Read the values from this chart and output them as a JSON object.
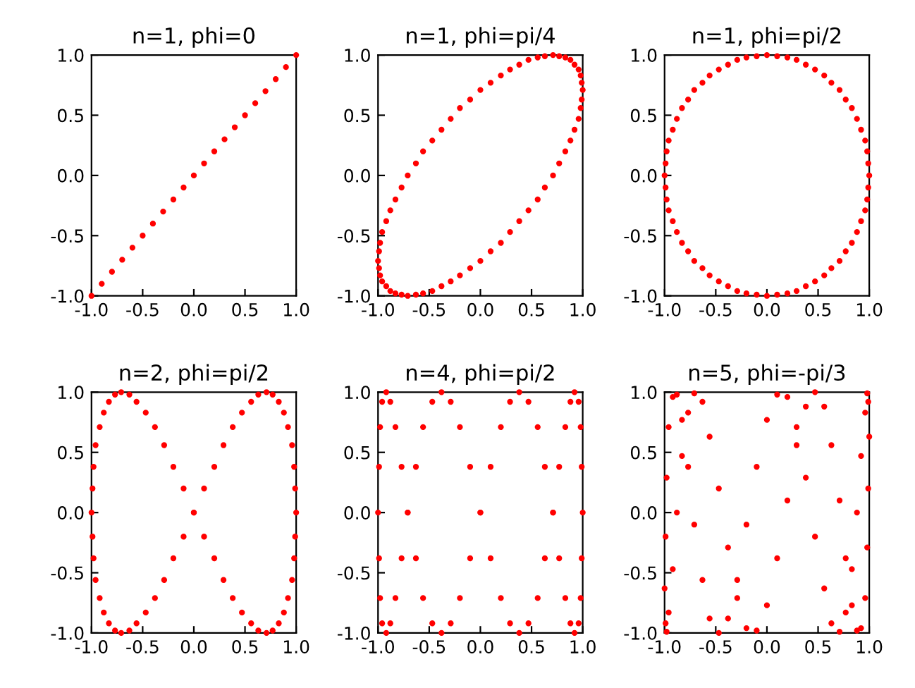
{
  "chart_data": [
    {
      "type": "scatter",
      "title": "n=1, phi=0",
      "color": "#ff0000",
      "marker": "circle",
      "xlim": [
        -1,
        1
      ],
      "ylim": [
        -1,
        1
      ],
      "xticks": [
        {
          "value": -1,
          "label": "-1.0"
        },
        {
          "value": -0.5,
          "label": "-0.5"
        },
        {
          "value": 0,
          "label": "0.0"
        },
        {
          "value": 0.5,
          "label": "0.5"
        },
        {
          "value": 1,
          "label": "1.0"
        }
      ],
      "yticks": [
        {
          "value": -1,
          "label": "-1.0"
        },
        {
          "value": -0.5,
          "label": "-0.5"
        },
        {
          "value": 0,
          "label": "0.0"
        },
        {
          "value": 0.5,
          "label": "0.5"
        },
        {
          "value": 1,
          "label": "1.0"
        }
      ],
      "x": [
        -1,
        -0.9,
        -0.8,
        -0.7,
        -0.6,
        -0.5,
        -0.4,
        -0.3,
        -0.2,
        -0.1,
        0,
        0.1,
        0.2,
        0.3,
        0.4,
        0.5,
        0.6,
        0.7,
        0.8,
        0.9,
        1
      ],
      "values": [
        -1,
        -0.9,
        -0.8,
        -0.7,
        -0.6,
        -0.5,
        -0.4,
        -0.3,
        -0.2,
        -0.1,
        0,
        0.1,
        0.2,
        0.3,
        0.4,
        0.5,
        0.6,
        0.7,
        0.8,
        0.9,
        1
      ]
    },
    {
      "type": "scatter",
      "title": "n=1, phi=pi/4",
      "color": "#ff0000",
      "marker": "circle",
      "xlim": [
        -1,
        1
      ],
      "ylim": [
        -1,
        1
      ],
      "xticks": [
        {
          "value": -1,
          "label": "-1.0"
        },
        {
          "value": -0.5,
          "label": "-0.5"
        },
        {
          "value": 0,
          "label": "0.0"
        },
        {
          "value": 0.5,
          "label": "0.5"
        },
        {
          "value": 1,
          "label": "1.0"
        }
      ],
      "yticks": [
        {
          "value": -1,
          "label": "-1.0"
        },
        {
          "value": -0.5,
          "label": "-0.5"
        },
        {
          "value": 0,
          "label": "0.0"
        },
        {
          "value": 0.5,
          "label": "0.5"
        },
        {
          "value": 1,
          "label": "1.0"
        }
      ],
      "x": [
        0.71,
        0.77,
        0.83,
        0.88,
        0.92,
        0.96,
        0.98,
        0.99,
        1,
        0.99,
        0.98,
        0.96,
        0.92,
        0.88,
        0.83,
        0.77,
        0.71,
        0.63,
        0.56,
        0.47,
        0.38,
        0.29,
        0.2,
        0.1,
        0,
        -0.1,
        -0.2,
        -0.29,
        -0.38,
        -0.47,
        -0.56,
        -0.63,
        -0.71,
        -0.77,
        -0.83,
        -0.88,
        -0.92,
        -0.96,
        -0.98,
        -0.99,
        -1,
        -0.99,
        -0.98,
        -0.96,
        -0.92,
        -0.88,
        -0.83,
        -0.77,
        -0.71,
        -0.63,
        -0.56,
        -0.47,
        -0.38,
        -0.29,
        -0.2,
        -0.1,
        0,
        0.1,
        0.2,
        0.29,
        0.38,
        0.47,
        0.56,
        0.63
      ],
      "values": [
        0,
        0.1,
        0.2,
        0.29,
        0.38,
        0.47,
        0.56,
        0.63,
        0.71,
        0.77,
        0.83,
        0.88,
        0.92,
        0.96,
        0.98,
        0.99,
        1,
        0.99,
        0.98,
        0.96,
        0.92,
        0.88,
        0.83,
        0.77,
        0.71,
        0.63,
        0.56,
        0.47,
        0.38,
        0.29,
        0.2,
        0.1,
        0,
        -0.1,
        -0.2,
        -0.29,
        -0.38,
        -0.47,
        -0.56,
        -0.63,
        -0.71,
        -0.77,
        -0.83,
        -0.88,
        -0.92,
        -0.96,
        -0.98,
        -0.99,
        -1,
        -0.99,
        -0.98,
        -0.96,
        -0.92,
        -0.88,
        -0.83,
        -0.77,
        -0.71,
        -0.63,
        -0.56,
        -0.47,
        -0.38,
        -0.29,
        -0.2,
        -0.1
      ]
    },
    {
      "type": "scatter",
      "title": "n=1, phi=pi/2",
      "color": "#ff0000",
      "marker": "circle",
      "xlim": [
        -1,
        1
      ],
      "ylim": [
        -1,
        1
      ],
      "xticks": [
        {
          "value": -1,
          "label": "-1.0"
        },
        {
          "value": -0.5,
          "label": "-0.5"
        },
        {
          "value": 0,
          "label": "0.0"
        },
        {
          "value": 0.5,
          "label": "0.5"
        },
        {
          "value": 1,
          "label": "1.0"
        }
      ],
      "yticks": [
        {
          "value": -1,
          "label": "-1.0"
        },
        {
          "value": -0.5,
          "label": "-0.5"
        },
        {
          "value": 0,
          "label": "0.0"
        },
        {
          "value": 0.5,
          "label": "0.5"
        },
        {
          "value": 1,
          "label": "1.0"
        }
      ],
      "x": [
        1,
        0.99,
        0.98,
        0.96,
        0.92,
        0.88,
        0.83,
        0.77,
        0.71,
        0.63,
        0.56,
        0.47,
        0.38,
        0.29,
        0.2,
        0.1,
        0,
        -0.1,
        -0.2,
        -0.29,
        -0.38,
        -0.47,
        -0.56,
        -0.63,
        -0.71,
        -0.77,
        -0.83,
        -0.88,
        -0.92,
        -0.96,
        -0.98,
        -0.99,
        -1,
        -0.99,
        -0.98,
        -0.96,
        -0.92,
        -0.88,
        -0.83,
        -0.77,
        -0.71,
        -0.63,
        -0.56,
        -0.47,
        -0.38,
        -0.29,
        -0.2,
        -0.1,
        0,
        0.1,
        0.2,
        0.29,
        0.38,
        0.47,
        0.56,
        0.63,
        0.71,
        0.77,
        0.83,
        0.88,
        0.92,
        0.96,
        0.98,
        0.99
      ],
      "values": [
        0,
        0.1,
        0.2,
        0.29,
        0.38,
        0.47,
        0.56,
        0.63,
        0.71,
        0.77,
        0.83,
        0.88,
        0.92,
        0.96,
        0.98,
        0.99,
        1,
        0.99,
        0.98,
        0.96,
        0.92,
        0.88,
        0.83,
        0.77,
        0.71,
        0.63,
        0.56,
        0.47,
        0.38,
        0.29,
        0.2,
        0.1,
        0,
        -0.1,
        -0.2,
        -0.29,
        -0.38,
        -0.47,
        -0.56,
        -0.63,
        -0.71,
        -0.77,
        -0.83,
        -0.88,
        -0.92,
        -0.96,
        -0.98,
        -0.99,
        -1,
        -0.99,
        -0.98,
        -0.96,
        -0.92,
        -0.88,
        -0.83,
        -0.77,
        -0.71,
        -0.63,
        -0.56,
        -0.47,
        -0.38,
        -0.29,
        -0.2,
        -0.1
      ]
    },
    {
      "type": "scatter",
      "title": "n=2, phi=pi/2",
      "color": "#ff0000",
      "marker": "circle",
      "xlim": [
        -1,
        1
      ],
      "ylim": [
        -1,
        1
      ],
      "xticks": [
        {
          "value": -1,
          "label": "-1.0"
        },
        {
          "value": -0.5,
          "label": "-0.5"
        },
        {
          "value": 0,
          "label": "0.0"
        },
        {
          "value": 0.5,
          "label": "0.5"
        },
        {
          "value": 1,
          "label": "1.0"
        }
      ],
      "yticks": [
        {
          "value": -1,
          "label": "-1.0"
        },
        {
          "value": -0.5,
          "label": "-0.5"
        },
        {
          "value": 0,
          "label": "0.0"
        },
        {
          "value": 0.5,
          "label": "0.5"
        },
        {
          "value": 1,
          "label": "1.0"
        }
      ],
      "x": [
        1,
        0.99,
        0.98,
        0.96,
        0.92,
        0.88,
        0.83,
        0.77,
        0.71,
        0.63,
        0.56,
        0.47,
        0.38,
        0.29,
        0.2,
        0.1,
        0,
        -0.1,
        -0.2,
        -0.29,
        -0.38,
        -0.47,
        -0.56,
        -0.63,
        -0.71,
        -0.77,
        -0.83,
        -0.88,
        -0.92,
        -0.96,
        -0.98,
        -0.99,
        -1,
        -0.99,
        -0.98,
        -0.96,
        -0.92,
        -0.88,
        -0.83,
        -0.77,
        -0.71,
        -0.63,
        -0.56,
        -0.47,
        -0.38,
        -0.29,
        -0.2,
        -0.1,
        0,
        0.1,
        0.2,
        0.29,
        0.38,
        0.47,
        0.56,
        0.63,
        0.71,
        0.77,
        0.83,
        0.88,
        0.92,
        0.96,
        0.98,
        0.99
      ],
      "values": [
        0,
        0.2,
        0.38,
        0.56,
        0.71,
        0.83,
        0.92,
        0.98,
        1,
        0.98,
        0.92,
        0.83,
        0.71,
        0.56,
        0.38,
        0.2,
        0,
        -0.2,
        -0.38,
        -0.56,
        -0.71,
        -0.83,
        -0.92,
        -0.98,
        -1,
        -0.98,
        -0.92,
        -0.83,
        -0.71,
        -0.56,
        -0.38,
        -0.2,
        0,
        0.2,
        0.38,
        0.56,
        0.71,
        0.83,
        0.92,
        0.98,
        1,
        0.98,
        0.92,
        0.83,
        0.71,
        0.56,
        0.38,
        0.2,
        0,
        -0.2,
        -0.38,
        -0.56,
        -0.71,
        -0.83,
        -0.92,
        -0.98,
        -1,
        -0.98,
        -0.92,
        -0.83,
        -0.71,
        -0.56,
        -0.38,
        -0.2
      ]
    },
    {
      "type": "scatter",
      "title": "n=4, phi=pi/2",
      "color": "#ff0000",
      "marker": "circle",
      "xlim": [
        -1,
        1
      ],
      "ylim": [
        -1,
        1
      ],
      "xticks": [
        {
          "value": -1,
          "label": "-1.0"
        },
        {
          "value": -0.5,
          "label": "-0.5"
        },
        {
          "value": 0,
          "label": "0.0"
        },
        {
          "value": 0.5,
          "label": "0.5"
        },
        {
          "value": 1,
          "label": "1.0"
        }
      ],
      "yticks": [
        {
          "value": -1,
          "label": "-1.0"
        },
        {
          "value": -0.5,
          "label": "-0.5"
        },
        {
          "value": 0,
          "label": "0.0"
        },
        {
          "value": 0.5,
          "label": "0.5"
        },
        {
          "value": 1,
          "label": "1.0"
        }
      ],
      "x": [
        1,
        0.99,
        0.98,
        0.96,
        0.92,
        0.88,
        0.83,
        0.77,
        0.71,
        0.63,
        0.56,
        0.47,
        0.38,
        0.29,
        0.2,
        0.1,
        0,
        -0.1,
        -0.2,
        -0.29,
        -0.38,
        -0.47,
        -0.56,
        -0.63,
        -0.71,
        -0.77,
        -0.83,
        -0.88,
        -0.92,
        -0.96,
        -0.98,
        -0.99,
        -1,
        -0.99,
        -0.98,
        -0.96,
        -0.92,
        -0.88,
        -0.83,
        -0.77,
        -0.71,
        -0.63,
        -0.56,
        -0.47,
        -0.38,
        -0.29,
        -0.2,
        -0.1,
        0,
        0.1,
        0.2,
        0.29,
        0.38,
        0.47,
        0.56,
        0.63,
        0.71,
        0.77,
        0.83,
        0.88,
        0.92,
        0.96,
        0.98,
        0.99
      ],
      "values": [
        0,
        0.38,
        0.71,
        0.92,
        1,
        0.92,
        0.71,
        0.38,
        0,
        -0.38,
        -0.71,
        -0.92,
        -1,
        -0.92,
        -0.71,
        -0.38,
        0,
        0.38,
        0.71,
        0.92,
        1,
        0.92,
        0.71,
        0.38,
        0,
        -0.38,
        -0.71,
        -0.92,
        -1,
        -0.92,
        -0.71,
        -0.38,
        0,
        0.38,
        0.71,
        0.92,
        1,
        0.92,
        0.71,
        0.38,
        0,
        -0.38,
        -0.71,
        -0.92,
        -1,
        -0.92,
        -0.71,
        -0.38,
        0,
        0.38,
        0.71,
        0.92,
        1,
        0.92,
        0.71,
        0.38,
        0,
        -0.38,
        -0.71,
        -0.92,
        -1,
        -0.92,
        -0.71,
        -0.38
      ]
    },
    {
      "type": "scatter",
      "title": "n=5, phi=-pi/3",
      "color": "#ff0000",
      "marker": "circle",
      "xlim": [
        -1,
        1
      ],
      "ylim": [
        -1,
        1
      ],
      "xticks": [
        {
          "value": -1,
          "label": "-1.0"
        },
        {
          "value": -0.5,
          "label": "-0.5"
        },
        {
          "value": 0,
          "label": "0.0"
        },
        {
          "value": 0.5,
          "label": "0.5"
        },
        {
          "value": 1,
          "label": "1.0"
        }
      ],
      "yticks": [
        {
          "value": -1,
          "label": "-1.0"
        },
        {
          "value": -0.5,
          "label": "-0.5"
        },
        {
          "value": 0,
          "label": "0.0"
        },
        {
          "value": 0.5,
          "label": "0.5"
        },
        {
          "value": 1,
          "label": "1.0"
        }
      ],
      "x": [
        -0.88,
        -0.83,
        -0.77,
        -0.71,
        -0.63,
        -0.56,
        -0.47,
        -0.38,
        -0.29,
        -0.2,
        -0.1,
        0,
        0.1,
        0.2,
        0.29,
        0.38,
        0.47,
        0.56,
        0.63,
        0.71,
        0.77,
        0.83,
        0.88,
        0.92,
        0.96,
        0.98,
        0.99,
        1,
        0.99,
        0.98,
        0.96,
        0.92,
        0.88,
        0.83,
        0.77,
        0.71,
        0.63,
        0.56,
        0.47,
        0.38,
        0.29,
        0.2,
        0.1,
        0,
        -0.1,
        -0.2,
        -0.29,
        -0.38,
        -0.47,
        -0.56,
        -0.63,
        -0.71,
        -0.77,
        -0.83,
        -0.88,
        -0.92,
        -0.96,
        -0.98,
        -0.99,
        -1,
        -0.99,
        -0.98,
        -0.96,
        -0.92
      ],
      "values": [
        0,
        0.47,
        0.83,
        0.99,
        0.92,
        0.63,
        0.2,
        -0.29,
        -0.71,
        -0.96,
        -0.98,
        -0.77,
        -0.38,
        0.1,
        0.56,
        0.88,
        1,
        0.88,
        0.56,
        0.1,
        -0.38,
        -0.77,
        -0.98,
        -0.96,
        -0.71,
        -0.29,
        0.2,
        0.63,
        0.92,
        0.99,
        0.83,
        0.47,
        0,
        -0.47,
        -0.83,
        -0.99,
        -0.92,
        -0.63,
        -0.2,
        0.29,
        0.71,
        0.96,
        0.98,
        0.77,
        0.38,
        -0.1,
        -0.56,
        -0.88,
        -1,
        -0.88,
        -0.56,
        -0.1,
        0.38,
        0.77,
        0.98,
        0.96,
        0.71,
        0.29,
        -0.2,
        -0.63,
        -0.92,
        -0.99,
        -0.83,
        -0.47
      ]
    }
  ]
}
